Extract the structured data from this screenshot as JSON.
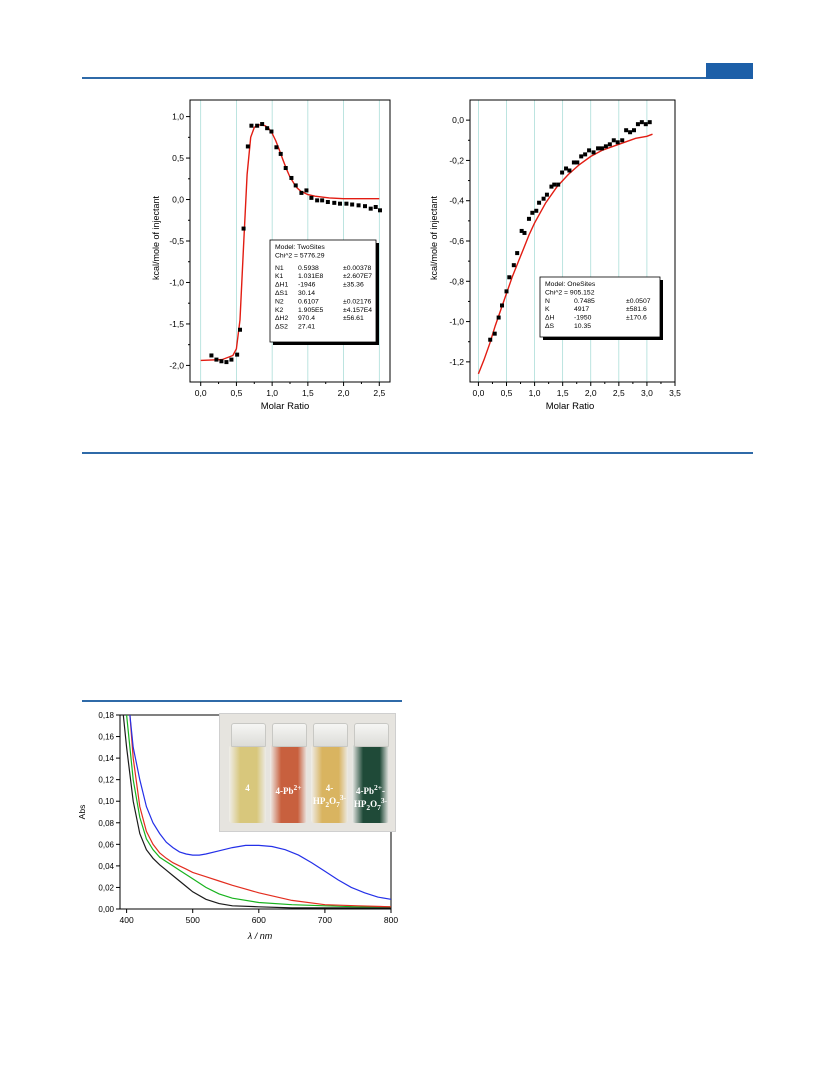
{
  "chart_data": [
    {
      "type": "scatter",
      "xlabel": "Molar Ratio",
      "ylabel": "kcal/mole of injectant",
      "xlim": [
        -0.15,
        2.65
      ],
      "ylim": [
        -2.2,
        1.2
      ],
      "x_ticks": [
        "0,0",
        "0,5",
        "1,0",
        "1,5",
        "2,0",
        "2,5"
      ],
      "y_ticks": [
        "-2,0",
        "-1,5",
        "-1,0",
        "-0,5",
        "0,0",
        "0,5",
        "1,0"
      ],
      "points_x": [
        0.15,
        0.22,
        0.29,
        0.36,
        0.43,
        0.51,
        0.55,
        0.6,
        0.66,
        0.71,
        0.79,
        0.86,
        0.93,
        0.99,
        1.06,
        1.12,
        1.19,
        1.27,
        1.33,
        1.41,
        1.48,
        1.55,
        1.63,
        1.7,
        1.78,
        1.87,
        1.95,
        2.04,
        2.12,
        2.21,
        2.3,
        2.38,
        2.45,
        2.51
      ],
      "points_y": [
        -1.88,
        -1.93,
        -1.95,
        -1.96,
        -1.93,
        -1.87,
        -1.57,
        -0.35,
        0.64,
        0.89,
        0.89,
        0.91,
        0.86,
        0.82,
        0.63,
        0.55,
        0.38,
        0.26,
        0.17,
        0.08,
        0.11,
        0.02,
        -0.01,
        -0.01,
        -0.03,
        -0.04,
        -0.05,
        -0.05,
        -0.06,
        -0.07,
        -0.08,
        -0.11,
        -0.09,
        -0.13
      ],
      "fit_x": [
        0.0,
        0.3,
        0.45,
        0.5,
        0.55,
        0.6,
        0.65,
        0.7,
        0.75,
        0.8,
        0.85,
        0.9,
        0.95,
        1.0,
        1.05,
        1.1,
        1.15,
        1.2,
        1.25,
        1.3,
        1.35,
        1.4,
        1.5,
        1.6,
        1.8,
        2.0,
        2.2,
        2.5
      ],
      "fit_y": [
        -1.94,
        -1.93,
        -1.88,
        -1.8,
        -1.45,
        -0.55,
        0.3,
        0.75,
        0.87,
        0.9,
        0.9,
        0.89,
        0.86,
        0.8,
        0.71,
        0.6,
        0.48,
        0.37,
        0.27,
        0.2,
        0.14,
        0.1,
        0.06,
        0.04,
        0.02,
        0.01,
        0.01,
        0.01
      ],
      "legend": {
        "model": "Model: TwoSites",
        "chi": "Chi^2 = 5776.29",
        "rows": [
          [
            "N1",
            "0.5938",
            "±0.00378"
          ],
          [
            "K1",
            "1.031E8",
            "±2.607E7"
          ],
          [
            "ΔH1",
            "-1946",
            "±35.36"
          ],
          [
            "ΔS1",
            "30.14",
            ""
          ],
          [
            "N2",
            "0.6107",
            "±0.02176"
          ],
          [
            "K2",
            "1.905E5",
            "±4.157E4"
          ],
          [
            "ΔH2",
            "970.4",
            "±56.61"
          ],
          [
            "ΔS2",
            "27.41",
            ""
          ]
        ]
      }
    },
    {
      "type": "scatter",
      "xlabel": "Molar Ratio",
      "ylabel": "kcal/mole of injectant",
      "xlim": [
        -0.15,
        3.5
      ],
      "ylim": [
        -1.3,
        0.1
      ],
      "x_ticks": [
        "0,0",
        "0,5",
        "1,0",
        "1,5",
        "2,0",
        "2,5",
        "3,0",
        "3,5"
      ],
      "y_ticks": [
        "-1,2",
        "-1,0",
        "-0,8",
        "-0,6",
        "-0,4",
        "-0,2",
        "0,0"
      ],
      "points_x": [
        0.21,
        0.29,
        0.36,
        0.42,
        0.5,
        0.55,
        0.63,
        0.69,
        0.77,
        0.82,
        0.9,
        0.96,
        1.03,
        1.08,
        1.16,
        1.22,
        1.3,
        1.35,
        1.42,
        1.49,
        1.56,
        1.62,
        1.7,
        1.76,
        1.83,
        1.9,
        1.97,
        2.05,
        2.13,
        2.2,
        2.27,
        2.34,
        2.41,
        2.48,
        2.56,
        2.63,
        2.7,
        2.77,
        2.84,
        2.91,
        2.98,
        3.05
      ],
      "points_y": [
        -1.09,
        -1.06,
        -0.98,
        -0.92,
        -0.85,
        -0.78,
        -0.72,
        -0.66,
        -0.55,
        -0.56,
        -0.49,
        -0.46,
        -0.45,
        -0.41,
        -0.39,
        -0.37,
        -0.33,
        -0.32,
        -0.32,
        -0.26,
        -0.24,
        -0.25,
        -0.21,
        -0.21,
        -0.18,
        -0.17,
        -0.15,
        -0.16,
        -0.14,
        -0.14,
        -0.13,
        -0.12,
        -0.1,
        -0.11,
        -0.1,
        -0.05,
        -0.06,
        -0.05,
        -0.02,
        -0.01,
        -0.02,
        -0.01
      ],
      "fit_x": [
        0.0,
        0.1,
        0.2,
        0.3,
        0.4,
        0.5,
        0.6,
        0.7,
        0.8,
        0.9,
        1.0,
        1.1,
        1.2,
        1.4,
        1.6,
        1.8,
        2.0,
        2.2,
        2.4,
        2.6,
        2.8,
        3.0,
        3.1
      ],
      "fit_y": [
        -1.26,
        -1.19,
        -1.11,
        -1.02,
        -0.94,
        -0.86,
        -0.78,
        -0.71,
        -0.64,
        -0.57,
        -0.51,
        -0.46,
        -0.41,
        -0.33,
        -0.27,
        -0.22,
        -0.18,
        -0.15,
        -0.13,
        -0.11,
        -0.09,
        -0.08,
        -0.07
      ],
      "legend": {
        "model": "Model: OneSites",
        "chi": "Chi^2 = 905.152",
        "rows": [
          [
            "N",
            "0.7485",
            "±0.0507"
          ],
          [
            "K",
            "4917",
            "±581.6"
          ],
          [
            "ΔH",
            "-1950",
            "±170.6"
          ],
          [
            "ΔS",
            "10.35",
            ""
          ]
        ]
      }
    },
    {
      "type": "line",
      "xlabel": "λ / nm",
      "ylabel": "Abs",
      "xlim": [
        390,
        800
      ],
      "ylim": [
        0,
        0.18
      ],
      "x_ticks": [
        "400",
        "500",
        "600",
        "700",
        "800"
      ],
      "y_ticks": [
        "0,00",
        "0,02",
        "0,04",
        "0,06",
        "0,08",
        "0,10",
        "0,12",
        "0,14",
        "0,16",
        "0,18"
      ],
      "series": [
        {
          "color": "#1b1b1b",
          "x": [
            395,
            400,
            410,
            420,
            430,
            440,
            450,
            460,
            470,
            480,
            490,
            500,
            520,
            540,
            560,
            600,
            650,
            700,
            750,
            800
          ],
          "y": [
            0.18,
            0.15,
            0.1,
            0.07,
            0.055,
            0.047,
            0.041,
            0.036,
            0.031,
            0.026,
            0.021,
            0.016,
            0.009,
            0.005,
            0.003,
            0.002,
            0.001,
            0.001,
            0.001,
            0.001
          ]
        },
        {
          "color": "#18b31e",
          "x": [
            400,
            405,
            410,
            420,
            430,
            440,
            450,
            460,
            470,
            480,
            490,
            500,
            520,
            540,
            560,
            600,
            650,
            700,
            750,
            800
          ],
          "y": [
            0.18,
            0.15,
            0.12,
            0.085,
            0.065,
            0.055,
            0.048,
            0.044,
            0.04,
            0.036,
            0.032,
            0.028,
            0.02,
            0.014,
            0.01,
            0.006,
            0.004,
            0.003,
            0.002,
            0.002
          ]
        },
        {
          "color": "#e32d1f",
          "x": [
            405,
            410,
            420,
            430,
            440,
            450,
            460,
            470,
            480,
            490,
            500,
            520,
            540,
            560,
            600,
            650,
            700,
            750,
            800
          ],
          "y": [
            0.18,
            0.14,
            0.095,
            0.072,
            0.06,
            0.052,
            0.047,
            0.043,
            0.04,
            0.037,
            0.034,
            0.03,
            0.026,
            0.022,
            0.015,
            0.008,
            0.004,
            0.003,
            0.002
          ]
        },
        {
          "color": "#2430e8",
          "x": [
            405,
            410,
            420,
            430,
            440,
            450,
            460,
            470,
            480,
            490,
            500,
            510,
            520,
            540,
            560,
            580,
            600,
            620,
            640,
            660,
            680,
            700,
            720,
            740,
            760,
            780,
            800
          ],
          "y": [
            0.18,
            0.15,
            0.12,
            0.095,
            0.08,
            0.07,
            0.062,
            0.057,
            0.053,
            0.051,
            0.05,
            0.05,
            0.051,
            0.054,
            0.057,
            0.059,
            0.059,
            0.058,
            0.055,
            0.05,
            0.043,
            0.035,
            0.027,
            0.02,
            0.015,
            0.011,
            0.009
          ]
        }
      ],
      "photo": {
        "vials": [
          {
            "label_html": "4",
            "color": "#d8c77c"
          },
          {
            "label_html": "4-Pb<sup>2+</sup>",
            "color": "#c8603e"
          },
          {
            "label_html": "4-HP<sub>2</sub>O<sub>7</sub><sup>3-</sup>",
            "color": "#d9b460"
          },
          {
            "label_html": "4-Pb<sup>2+</sup>-<br>HP<sub>2</sub>O<sub>7</sub><sup>3-</sup>",
            "color": "#1f4a38"
          }
        ]
      }
    }
  ]
}
